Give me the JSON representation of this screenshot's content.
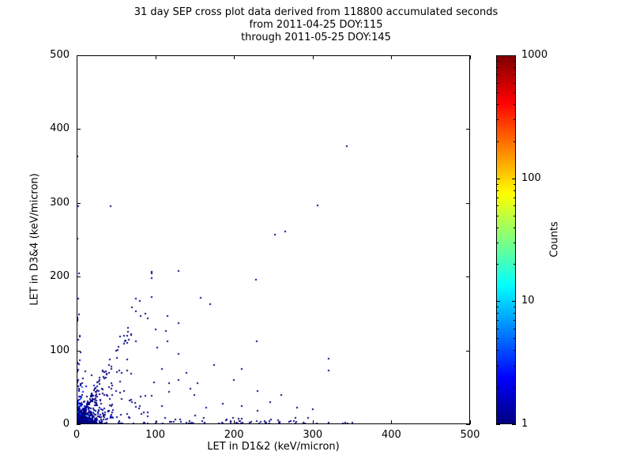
{
  "title": {
    "line1": "31 day SEP cross plot data derived from 118800 accumulated seconds",
    "line2": "from 2011-04-25 DOY:115",
    "line3": "through 2011-05-25 DOY:145"
  },
  "chart_data": {
    "type": "scatter",
    "xlabel": "LET in D1&2 (keV/micron)",
    "ylabel": "LET in D3&4 (keV/micron)",
    "xlim": [
      0,
      500
    ],
    "ylim": [
      0,
      500
    ],
    "x_ticks": [
      0,
      100,
      200,
      300,
      400,
      500
    ],
    "y_ticks": [
      0,
      100,
      200,
      300,
      400,
      500
    ],
    "grid": false,
    "marker_size": 2,
    "marker_base_color": "#00008f",
    "colorbar": {
      "label": "Counts",
      "scale": "log",
      "min": 1,
      "max": 1000,
      "ticks": [
        1,
        10,
        100,
        1000
      ],
      "colormap": "jet",
      "stops": [
        [
          0,
          "#000080"
        ],
        [
          0.125,
          "#0000ff"
        ],
        [
          0.375,
          "#00ffff"
        ],
        [
          0.625,
          "#ffff00"
        ],
        [
          0.875,
          "#ff0000"
        ],
        [
          1,
          "#800000"
        ]
      ]
    },
    "outlier_points": [
      [
        343,
        377
      ],
      [
        306,
        297
      ],
      [
        265,
        261
      ],
      [
        252,
        257
      ],
      [
        228,
        196
      ],
      [
        170,
        163
      ],
      [
        158,
        171
      ],
      [
        43,
        296
      ],
      [
        1,
        363
      ],
      [
        2,
        296
      ],
      [
        1,
        252
      ],
      [
        3,
        205
      ],
      [
        2,
        170
      ],
      [
        1,
        140
      ],
      [
        75,
        170
      ],
      [
        80,
        167
      ],
      [
        70,
        158
      ],
      [
        90,
        143
      ],
      [
        100,
        128
      ],
      [
        115,
        112
      ],
      [
        60,
        120
      ],
      [
        50,
        100
      ],
      [
        108,
        75
      ],
      [
        130,
        60
      ],
      [
        150,
        40
      ],
      [
        165,
        22
      ],
      [
        186,
        28
      ],
      [
        210,
        25
      ],
      [
        230,
        18
      ],
      [
        280,
        22
      ],
      [
        300,
        20
      ],
      [
        120,
        3
      ],
      [
        140,
        2
      ],
      [
        160,
        4
      ],
      [
        185,
        2
      ],
      [
        205,
        1
      ],
      [
        222,
        3
      ],
      [
        240,
        2
      ],
      [
        258,
        1
      ],
      [
        270,
        3
      ],
      [
        288,
        2
      ],
      [
        305,
        1
      ],
      [
        320,
        2
      ],
      [
        338,
        1
      ],
      [
        350,
        2
      ],
      [
        230,
        45
      ],
      [
        260,
        40
      ],
      [
        200,
        60
      ],
      [
        175,
        80
      ],
      [
        190,
        5
      ],
      [
        210,
        8
      ],
      [
        246,
        30
      ],
      [
        130,
        95
      ],
      [
        140,
        70
      ]
    ],
    "point_clusters": [
      {
        "kind": "blob",
        "n": 900,
        "x_scale": 5,
        "y_scale": 5,
        "count_scale": 2.2
      },
      {
        "kind": "blob",
        "n": 250,
        "x_scale": 12,
        "y_scale": 12,
        "count_scale": 1.2
      },
      {
        "kind": "fan",
        "n": 90,
        "x_scale": 30,
        "x_max": 95,
        "slope_min": 1.7,
        "slope_max": 2.2
      },
      {
        "kind": "fan",
        "n": 150,
        "x_scale": 30,
        "x_max": 130,
        "slope_min": 0.15,
        "slope_max": 1.8
      },
      {
        "kind": "fan",
        "n": 25,
        "x_scale": 120,
        "x_max": 320,
        "slope_min": 0.05,
        "slope_max": 0.5
      },
      {
        "kind": "xband",
        "n": 150,
        "x_max": 345,
        "y_scale": 2.5
      },
      {
        "kind": "yband",
        "n": 40,
        "y_max": 150,
        "x_scale": 2
      }
    ],
    "seed": 1337
  },
  "layout_text": {}
}
